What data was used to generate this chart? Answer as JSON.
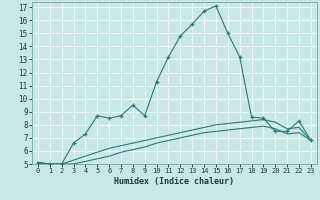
{
  "xlabel": "Humidex (Indice chaleur)",
  "background_color": "#c8e8e8",
  "line_color": "#2a7a70",
  "xlim": [
    -0.5,
    23.5
  ],
  "ylim": [
    5,
    17.4
  ],
  "yticks": [
    5,
    6,
    7,
    8,
    9,
    10,
    11,
    12,
    13,
    14,
    15,
    16,
    17
  ],
  "xticks": [
    0,
    1,
    2,
    3,
    4,
    5,
    6,
    7,
    8,
    9,
    10,
    11,
    12,
    13,
    14,
    15,
    16,
    17,
    18,
    19,
    20,
    21,
    22,
    23
  ],
  "line1_x": [
    0,
    1,
    2,
    3,
    4,
    5,
    6,
    7,
    8,
    9,
    10,
    11,
    12,
    13,
    14,
    15,
    16,
    17,
    18,
    19,
    20,
    21,
    22,
    23
  ],
  "line1_y": [
    5.1,
    5.0,
    5.0,
    6.6,
    7.3,
    8.7,
    8.5,
    8.7,
    9.5,
    8.7,
    11.3,
    13.2,
    14.8,
    15.7,
    16.7,
    17.1,
    15.0,
    13.2,
    8.6,
    8.5,
    7.5,
    7.5,
    8.3,
    6.8
  ],
  "line2_x": [
    0,
    1,
    2,
    3,
    4,
    5,
    6,
    7,
    8,
    9,
    10,
    11,
    12,
    13,
    14,
    15,
    16,
    17,
    18,
    19,
    20,
    21,
    22,
    23
  ],
  "line2_y": [
    5.1,
    5.0,
    5.0,
    5.3,
    5.6,
    5.9,
    6.2,
    6.4,
    6.6,
    6.8,
    7.0,
    7.2,
    7.4,
    7.6,
    7.8,
    8.0,
    8.1,
    8.2,
    8.3,
    8.4,
    8.2,
    7.7,
    7.8,
    6.8
  ],
  "line3_x": [
    0,
    1,
    2,
    3,
    4,
    5,
    6,
    7,
    8,
    9,
    10,
    11,
    12,
    13,
    14,
    15,
    16,
    17,
    18,
    19,
    20,
    21,
    22,
    23
  ],
  "line3_y": [
    5.1,
    5.0,
    5.0,
    5.0,
    5.2,
    5.4,
    5.6,
    5.9,
    6.1,
    6.3,
    6.6,
    6.8,
    7.0,
    7.2,
    7.4,
    7.5,
    7.6,
    7.7,
    7.8,
    7.9,
    7.7,
    7.3,
    7.4,
    6.8
  ]
}
